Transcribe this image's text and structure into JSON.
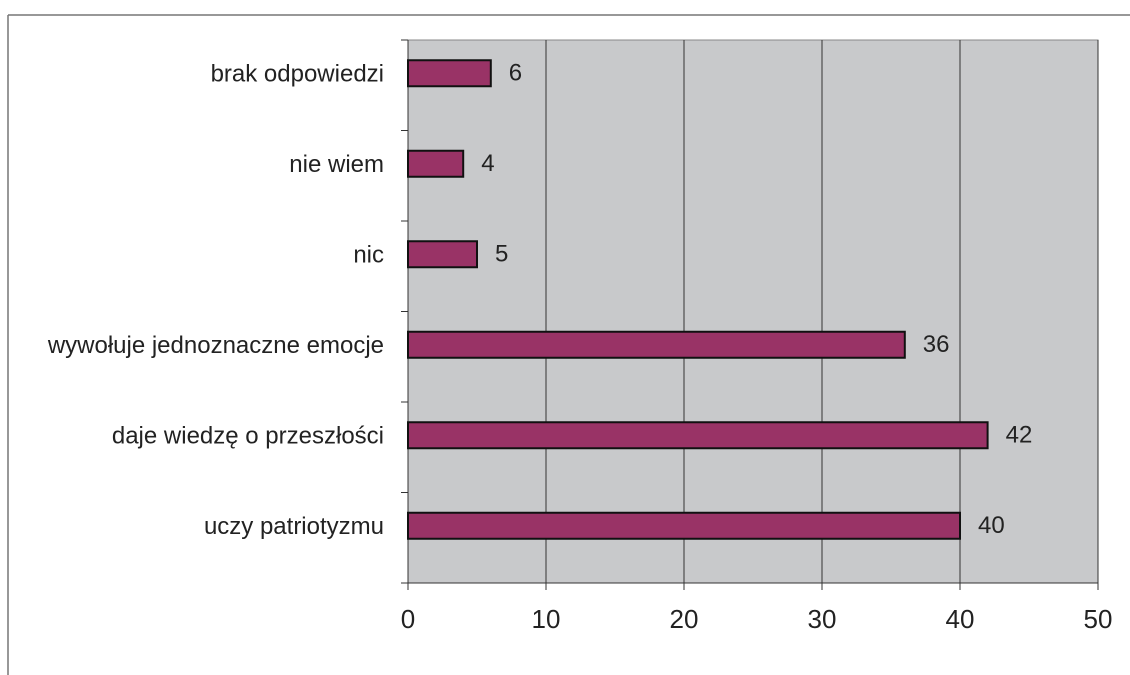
{
  "chart_data": {
    "type": "bar",
    "orientation": "horizontal",
    "categories": [
      "brak odpowiedzi",
      "nie wiem",
      "nic",
      "wywołuje jednoznaczne emocje",
      "daje wiedzę o przeszłości",
      "uczy patriotyzmu"
    ],
    "values": [
      6,
      4,
      5,
      36,
      42,
      40
    ],
    "color": "#993366",
    "xlim": [
      0,
      50
    ],
    "xticks": [
      0,
      10,
      20,
      30,
      40,
      50
    ],
    "grid": true
  }
}
